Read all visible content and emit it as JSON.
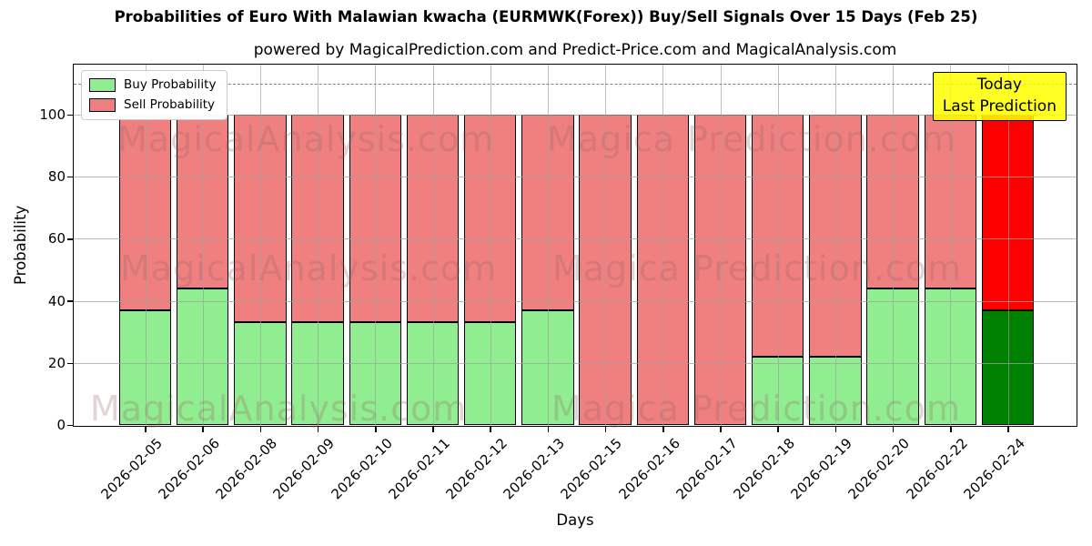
{
  "chart_data": {
    "type": "bar",
    "stacked": true,
    "title": "Probabilities of Euro With Malawian kwacha (EURMWK(Forex)) Buy/Sell Signals Over 15 Days (Feb 25)",
    "subtitle": "powered by MagicalPrediction.com and Predict-Price.com and MagicalAnalysis.com",
    "xlabel": "Days",
    "ylabel": "Probability",
    "categories": [
      "2026-02-05",
      "2026-02-06",
      "2026-02-08",
      "2026-02-09",
      "2026-02-10",
      "2026-02-11",
      "2026-02-12",
      "2026-02-13",
      "2026-02-15",
      "2026-02-16",
      "2026-02-17",
      "2026-02-18",
      "2026-02-19",
      "2026-02-20",
      "2026-02-22",
      "2026-02-24"
    ],
    "series": [
      {
        "name": "Buy Probability",
        "color": "#90EE90",
        "values": [
          37,
          44,
          33,
          33,
          33,
          33,
          33,
          37,
          0,
          0,
          0,
          22,
          22,
          44,
          44,
          37
        ]
      },
      {
        "name": "Sell Probability",
        "color": "#F08080",
        "values": [
          63,
          56,
          67,
          67,
          67,
          67,
          67,
          63,
          100,
          100,
          100,
          78,
          78,
          56,
          56,
          63
        ]
      }
    ],
    "today_index": 15,
    "today_colors": {
      "buy": "#008000",
      "sell": "#FF0000"
    },
    "yticks": [
      0,
      20,
      40,
      60,
      80,
      100
    ],
    "ylim": [
      0,
      116
    ],
    "dashed_line_y": 110,
    "grid": true,
    "legend_position": "upper left",
    "edge_color": "#000000"
  },
  "annotation_box": {
    "line1": "Today",
    "line2": "Last Prediction",
    "bg": "#FFFF00"
  },
  "watermarks": {
    "left": "MagicalAnalysis.com",
    "right": "Magica Prediction.com"
  }
}
